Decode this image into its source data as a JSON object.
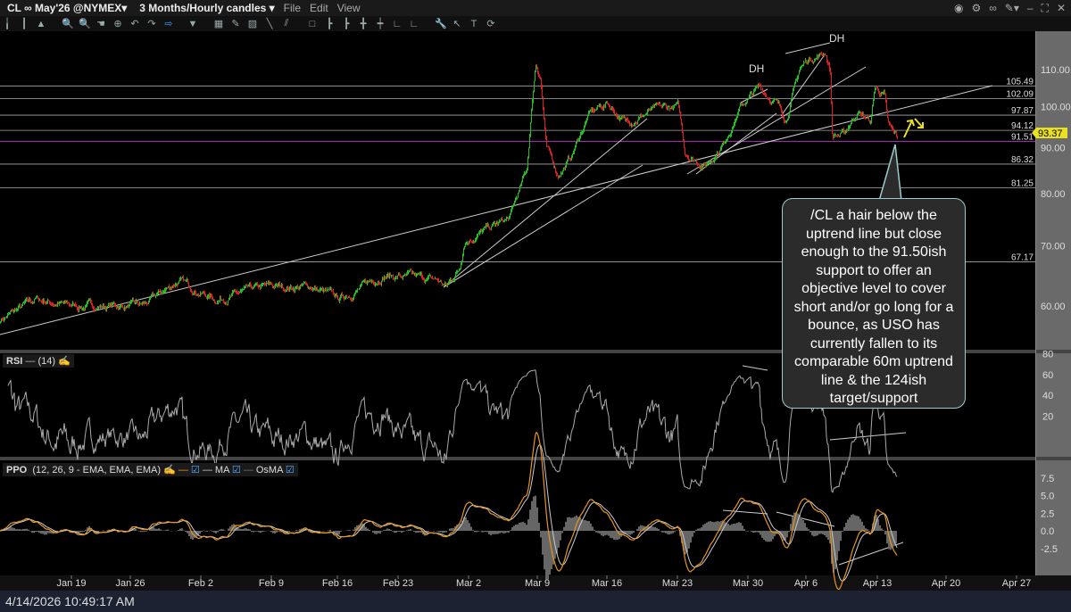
{
  "window": {
    "symbol": "CL ∞ May'26 @NYMEX▾",
    "timeframe": "3 Months/Hourly candles ▾",
    "menu": [
      "File",
      "Edit",
      "View"
    ],
    "controls": [
      "camera-icon",
      "gear-icon",
      "link-icon",
      "pin-icon",
      "minimize-icon",
      "maximize-icon",
      "close-icon"
    ]
  },
  "panels": {
    "rsi": {
      "label": "RSI",
      "params": "(14)"
    },
    "ppo": {
      "label": "PPO",
      "params": "(12, 26, 9 - EMA, EMA, EMA)",
      "ma": "MA",
      "osma": "OsMA"
    }
  },
  "price_axis": {
    "ticks": [
      "110.00",
      "100.00",
      "90.00",
      "80.00",
      "70.00",
      "60.00"
    ],
    "last_price": "93.37",
    "last_color": "#e8e020"
  },
  "levels": [
    {
      "value": "105.49",
      "color": "#aaaaaa"
    },
    {
      "value": "102.09",
      "color": "#aaaaaa"
    },
    {
      "value": "97.87",
      "color": "#aaaaaa"
    },
    {
      "value": "94.12",
      "color": "#aaaaaa"
    },
    {
      "value": "91.51",
      "color": "#9b2aa8"
    },
    {
      "value": "86.32",
      "color": "#aaaaaa"
    },
    {
      "value": "81.25",
      "color": "#aaaaaa"
    },
    {
      "value": "67.17",
      "color": "#aaaaaa"
    }
  ],
  "rsi_axis": [
    "80",
    "60",
    "40",
    "20"
  ],
  "ppo_axis": [
    "7.5",
    "5.0",
    "2.5",
    "0.0",
    "-2.5"
  ],
  "time_axis": [
    "Jan 19",
    "Jan 26",
    "Feb 2",
    "Feb 9",
    "Feb 16",
    "Feb 23",
    "Mar 2",
    "Mar 9",
    "Mar 16",
    "Mar 23",
    "Mar 30",
    "Apr 6",
    "Apr 13",
    "Apr 20",
    "Apr 27"
  ],
  "annotations": {
    "dh1": "DH",
    "dh2": "DH",
    "callout": "/CL a hair below the uptrend line but close enough to the 91.50ish support to offer an objective level to cover short and/or go long for a bounce, as USO has currently fallen to its comparable 60m uptrend line & the 124ish target/support"
  },
  "status": {
    "timestamp": "4/14/2026 10:49:17 AM"
  },
  "chart_data": {
    "type": "candlestick",
    "scale": "log",
    "ylim": [
      55,
      118
    ],
    "up_color": "#22c022",
    "down_color": "#e02020",
    "price_path": [
      [
        "2026-01-12T00",
        58
      ],
      [
        "2026-01-15T14",
        61
      ],
      [
        "2026-01-19T07",
        60
      ],
      [
        "2026-01-26T19",
        60
      ],
      [
        "2026-01-30T10",
        64
      ],
      [
        "2026-02-03T05",
        61
      ],
      [
        "2026-02-08T17",
        63
      ],
      [
        "2026-02-13T07",
        63
      ],
      [
        "2026-02-16T02",
        61
      ],
      [
        "2026-02-20T19",
        65
      ],
      [
        "2026-02-26T07",
        64
      ],
      [
        "2026-02-27T05",
        63
      ],
      [
        "2026-02-28T14",
        66
      ],
      [
        "2026-03-01T02",
        71
      ],
      [
        "2026-03-05T19",
        75
      ],
      [
        "2026-03-07T14",
        85
      ],
      [
        "2026-03-08T12",
        112
      ],
      [
        "2026-03-09T00",
        108
      ],
      [
        "2026-03-09T14",
        90
      ],
      [
        "2026-03-10T19",
        84
      ],
      [
        "2026-03-12T05",
        88
      ],
      [
        "2026-03-14T00",
        98
      ],
      [
        "2026-03-15T22",
        101
      ],
      [
        "2026-03-17T19",
        96
      ],
      [
        "2026-03-20T14",
        99
      ],
      [
        "2026-03-23T07",
        100
      ],
      [
        "2026-03-24T00",
        89
      ],
      [
        "2026-03-26T02",
        86
      ],
      [
        "2026-03-28T00",
        91
      ],
      [
        "2026-03-29T19",
        100
      ],
      [
        "2026-03-31T17",
        105
      ],
      [
        "2026-04-02T12",
        101
      ],
      [
        "2026-04-03T12",
        97
      ],
      [
        "2026-04-04T22",
        110
      ],
      [
        "2026-04-05T19",
        113
      ],
      [
        "2026-04-07T14",
        115
      ],
      [
        "2026-04-08T02",
        110
      ],
      [
        "2026-04-08T07",
        93
      ],
      [
        "2026-04-09T12",
        93
      ],
      [
        "2026-04-10T22",
        99
      ],
      [
        "2026-04-12T07",
        96
      ],
      [
        "2026-04-12T17",
        105
      ],
      [
        "2026-04-13T17",
        103
      ],
      [
        "2026-04-14T02",
        95
      ],
      [
        "2026-04-15T00",
        92
      ]
    ]
  }
}
